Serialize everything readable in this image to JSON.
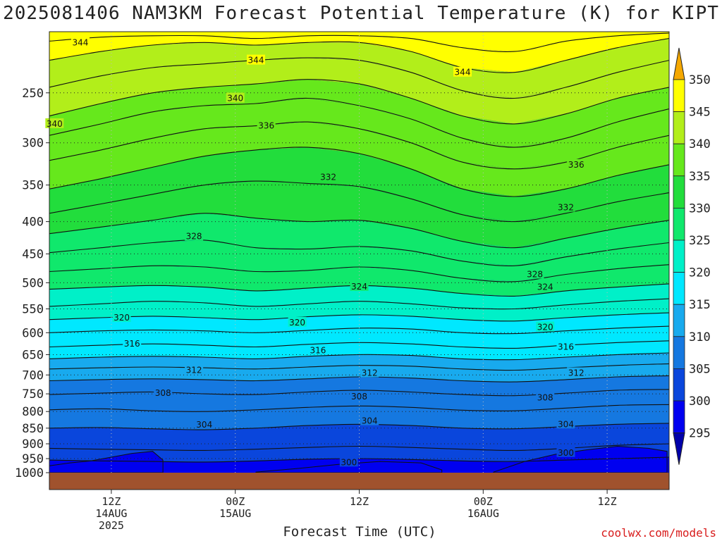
{
  "chart_data": {
    "type": "contour",
    "title": "2025081406 NAM3KM Forecast Potential Temperature (K) for KIPT",
    "xlabel": "Forecast Time (UTC)",
    "ylabel": "",
    "credit": "coolwx.com/models",
    "y_axis": {
      "units": "hPa",
      "scale": "log-pressure",
      "range": [
        200,
        1000
      ],
      "ticks": [
        250,
        300,
        350,
        400,
        450,
        500,
        550,
        600,
        650,
        700,
        750,
        800,
        850,
        900,
        950,
        1000
      ]
    },
    "x_axis": {
      "units": "forecast hour",
      "range": [
        6,
        66
      ],
      "ticks": [
        {
          "hour": 12,
          "lines": [
            "12Z",
            "14AUG",
            "2025"
          ]
        },
        {
          "hour": 24,
          "lines": [
            "00Z",
            "15AUG"
          ]
        },
        {
          "hour": 36,
          "lines": [
            "12Z"
          ]
        },
        {
          "hour": 48,
          "lines": [
            "00Z",
            "16AUG"
          ]
        },
        {
          "hour": 60,
          "lines": [
            "12Z"
          ]
        }
      ]
    },
    "colorbar": {
      "ticks": [
        350,
        345,
        340,
        335,
        330,
        325,
        320,
        315,
        310,
        305,
        300,
        295
      ],
      "bands": [
        {
          "min": 350,
          "color": "#f5a800"
        },
        {
          "min": 345,
          "max": 350,
          "color": "#ffff00"
        },
        {
          "min": 340,
          "max": 345,
          "color": "#b2ee1a"
        },
        {
          "min": 335,
          "max": 340,
          "color": "#66e81c"
        },
        {
          "min": 330,
          "max": 335,
          "color": "#22dd3c"
        },
        {
          "min": 325,
          "max": 330,
          "color": "#10e86c"
        },
        {
          "min": 320,
          "max": 325,
          "color": "#00f0c8"
        },
        {
          "min": 315,
          "max": 320,
          "color": "#00e8ff"
        },
        {
          "min": 310,
          "max": 315,
          "color": "#18aaee"
        },
        {
          "min": 305,
          "max": 310,
          "color": "#1578e0"
        },
        {
          "min": 300,
          "max": 305,
          "color": "#0a46dc"
        },
        {
          "min": 295,
          "max": 300,
          "color": "#0000f0"
        },
        {
          "max": 295,
          "color": "#0000aa"
        }
      ]
    },
    "ground_color": "#a0522d",
    "isentropes": [
      {
        "theta": 300,
        "pressure": [
          955,
          958,
          960,
          962,
          958,
          952,
          950,
          953,
          958,
          960,
          955,
          950,
          945
        ]
      },
      {
        "theta": 302,
        "pressure": [
          915,
          918,
          920,
          922,
          918,
          912,
          908,
          912,
          918,
          922,
          915,
          905,
          900
        ]
      },
      {
        "theta": 304,
        "pressure": [
          850,
          848,
          852,
          855,
          850,
          842,
          838,
          842,
          850,
          852,
          845,
          838,
          835
        ]
      },
      {
        "theta": 306,
        "pressure": [
          795,
          792,
          798,
          800,
          795,
          788,
          784,
          788,
          796,
          798,
          790,
          782,
          780
        ]
      },
      {
        "theta": 308,
        "pressure": [
          752,
          748,
          745,
          750,
          752,
          745,
          740,
          745,
          752,
          755,
          748,
          740,
          738
        ]
      },
      {
        "theta": 310,
        "pressure": [
          715,
          712,
          710,
          712,
          715,
          710,
          705,
          708,
          715,
          718,
          712,
          705,
          702
        ]
      },
      {
        "theta": 312,
        "pressure": [
          685,
          682,
          680,
          682,
          685,
          680,
          676,
          678,
          685,
          688,
          682,
          676,
          672
        ]
      },
      {
        "theta": 314,
        "pressure": [
          660,
          656,
          654,
          656,
          660,
          654,
          650,
          652,
          660,
          662,
          656,
          650,
          646
        ]
      },
      {
        "theta": 316,
        "pressure": [
          632,
          628,
          625,
          628,
          632,
          626,
          622,
          625,
          632,
          635,
          628,
          622,
          618
        ]
      },
      {
        "theta": 318,
        "pressure": [
          600,
          596,
          594,
          596,
          600,
          595,
          590,
          592,
          600,
          602,
          596,
          590,
          586
        ]
      },
      {
        "theta": 320,
        "pressure": [
          572,
          568,
          565,
          568,
          572,
          566,
          562,
          565,
          572,
          575,
          568,
          562,
          558
        ]
      },
      {
        "theta": 322,
        "pressure": [
          545,
          540,
          535,
          538,
          545,
          540,
          535,
          540,
          548,
          550,
          542,
          535,
          530
        ]
      },
      {
        "theta": 324,
        "pressure": [
          512,
          508,
          505,
          508,
          515,
          510,
          505,
          510,
          520,
          525,
          515,
          508,
          502
        ]
      },
      {
        "theta": 326,
        "pressure": [
          480,
          475,
          470,
          472,
          480,
          478,
          472,
          478,
          492,
          498,
          485,
          475,
          468
        ]
      },
      {
        "theta": 328,
        "pressure": [
          448,
          440,
          432,
          428,
          440,
          442,
          438,
          445,
          462,
          470,
          455,
          442,
          432
        ]
      },
      {
        "theta": 330,
        "pressure": [
          418,
          408,
          398,
          388,
          395,
          400,
          398,
          410,
          430,
          440,
          425,
          410,
          398
        ]
      },
      {
        "theta": 332,
        "pressure": [
          388,
          375,
          362,
          350,
          345,
          348,
          352,
          368,
          390,
          400,
          388,
          372,
          360
        ]
      },
      {
        "theta": 334,
        "pressure": [
          355,
          342,
          328,
          315,
          308,
          305,
          312,
          330,
          355,
          365,
          355,
          338,
          325
        ]
      },
      {
        "theta": 336,
        "pressure": [
          320,
          308,
          295,
          285,
          282,
          278,
          285,
          300,
          322,
          330,
          322,
          305,
          292
        ]
      },
      {
        "theta": 338,
        "pressure": [
          292,
          280,
          268,
          262,
          260,
          255,
          262,
          275,
          295,
          305,
          295,
          278,
          265
        ]
      },
      {
        "theta": 340,
        "pressure": [
          272,
          260,
          250,
          245,
          242,
          238,
          242,
          255,
          272,
          280,
          270,
          255,
          245
        ]
      },
      {
        "theta": 342,
        "pressure": [
          245,
          235,
          228,
          225,
          222,
          220,
          222,
          232,
          248,
          255,
          245,
          232,
          222
        ]
      },
      {
        "theta": 344,
        "pressure": [
          222,
          215,
          210,
          208,
          210,
          208,
          208,
          215,
          228,
          232,
          222,
          212,
          205
        ]
      },
      {
        "theta": 346,
        "pressure": [
          207,
          204,
          203,
          203,
          205,
          203,
          203,
          205,
          212,
          215,
          207,
          203,
          201
        ]
      }
    ],
    "isentrope_hours": [
      6,
      11,
      16,
      21,
      26,
      31,
      36,
      41,
      46,
      51,
      56,
      61,
      66
    ],
    "contour_labels": [
      {
        "text": "344",
        "hour": 9,
        "pressure": 208
      },
      {
        "text": "344",
        "hour": 26,
        "pressure": 222
      },
      {
        "text": "344",
        "hour": 46,
        "pressure": 232
      },
      {
        "text": "340",
        "hour": 6.5,
        "pressure": 280
      },
      {
        "text": "340",
        "hour": 24,
        "pressure": 255
      },
      {
        "text": "336",
        "hour": 27,
        "pressure": 282
      },
      {
        "text": "336",
        "hour": 57,
        "pressure": 325
      },
      {
        "text": "332",
        "hour": 33,
        "pressure": 340
      },
      {
        "text": "332",
        "hour": 56,
        "pressure": 380
      },
      {
        "text": "328",
        "hour": 20,
        "pressure": 422
      },
      {
        "text": "328",
        "hour": 53,
        "pressure": 485
      },
      {
        "text": "324",
        "hour": 36,
        "pressure": 507
      },
      {
        "text": "324",
        "hour": 54,
        "pressure": 508
      },
      {
        "text": "320",
        "hour": 13,
        "pressure": 568
      },
      {
        "text": "320",
        "hour": 30,
        "pressure": 578
      },
      {
        "text": "320",
        "hour": 54,
        "pressure": 588
      },
      {
        "text": "316",
        "hour": 14,
        "pressure": 625
      },
      {
        "text": "316",
        "hour": 32,
        "pressure": 640
      },
      {
        "text": "316",
        "hour": 56,
        "pressure": 632
      },
      {
        "text": "312",
        "hour": 20,
        "pressure": 688
      },
      {
        "text": "312",
        "hour": 37,
        "pressure": 695
      },
      {
        "text": "312",
        "hour": 57,
        "pressure": 695
      },
      {
        "text": "308",
        "hour": 17,
        "pressure": 748
      },
      {
        "text": "308",
        "hour": 36,
        "pressure": 758
      },
      {
        "text": "308",
        "hour": 54,
        "pressure": 760
      },
      {
        "text": "304",
        "hour": 21,
        "pressure": 840
      },
      {
        "text": "304",
        "hour": 37,
        "pressure": 828
      },
      {
        "text": "304",
        "hour": 56,
        "pressure": 838
      },
      {
        "text": "300",
        "hour": 35,
        "pressure": 963
      },
      {
        "text": "300",
        "hour": 56,
        "pressure": 930
      }
    ],
    "cold_pools": [
      {
        "hours": [
          6,
          8,
          10,
          12,
          14,
          16,
          17
        ],
        "pressure_top": [
          975,
          965,
          958,
          945,
          932,
          925,
          955
        ]
      },
      {
        "hours": [
          26,
          30,
          34,
          38,
          42,
          44
        ],
        "pressure_top": [
          998,
          985,
          970,
          960,
          965,
          990
        ]
      },
      {
        "hours": [
          49,
          52,
          55,
          58,
          61,
          64,
          65.8
        ],
        "pressure_top": [
          998,
          960,
          935,
          920,
          908,
          915,
          925
        ]
      }
    ],
    "grid": true,
    "legend_placement": "right"
  }
}
